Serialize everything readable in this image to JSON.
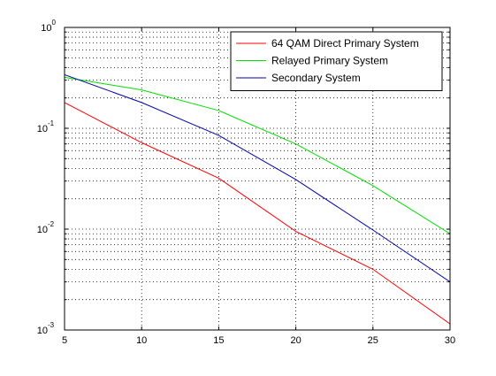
{
  "chart_data": {
    "type": "line",
    "title": "",
    "xlabel": "",
    "ylabel": "",
    "xlim": [
      5,
      30
    ],
    "ylim": [
      0.001,
      1
    ],
    "yscale": "log",
    "grid": true,
    "legend_position": "top-right",
    "x_ticks": [
      5,
      10,
      15,
      20,
      25,
      30
    ],
    "y_ticks": [
      {
        "value": 0.001,
        "base": "10",
        "exp": "-3"
      },
      {
        "value": 0.01,
        "base": "10",
        "exp": "-2"
      },
      {
        "value": 0.1,
        "base": "10",
        "exp": "-1"
      },
      {
        "value": 1,
        "base": "10",
        "exp": "0"
      }
    ],
    "series": [
      {
        "name": "64 QAM Direct Primary System",
        "color": "#ff0000",
        "x": [
          5,
          10,
          15,
          20,
          25,
          30
        ],
        "y": [
          0.18,
          0.072,
          0.032,
          0.0095,
          0.004,
          0.00115
        ]
      },
      {
        "name": "Relayed Primary System",
        "color": "#00dd00",
        "x": [
          5,
          10,
          15,
          20,
          25,
          30
        ],
        "y": [
          0.32,
          0.24,
          0.15,
          0.07,
          0.027,
          0.009
        ]
      },
      {
        "name": "Secondary System",
        "color": "#0000aa",
        "x": [
          5,
          10,
          15,
          20,
          25,
          30
        ],
        "y": [
          0.34,
          0.18,
          0.085,
          0.031,
          0.0098,
          0.003
        ]
      }
    ]
  }
}
